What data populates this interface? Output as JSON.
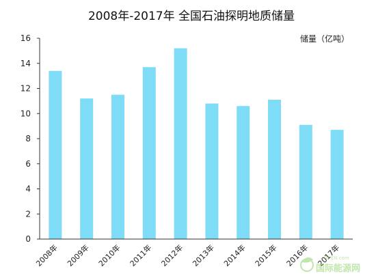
{
  "chart_data": {
    "type": "bar",
    "title": "2008年-2017年  全国石油探明地质储量",
    "unit_label": "储量（亿吨）",
    "categories": [
      "2008年",
      "2009年",
      "2010年",
      "2011年",
      "2012年",
      "2013年",
      "2014年",
      "2015年",
      "2016年",
      "2017年"
    ],
    "values": [
      13.4,
      11.2,
      11.5,
      13.7,
      15.2,
      10.8,
      10.6,
      11.1,
      9.1,
      8.7
    ],
    "ylim": [
      0,
      16
    ],
    "yticks": [
      0,
      2,
      4,
      6,
      8,
      10,
      12,
      14,
      16
    ],
    "bar_color": "#7fdcf6",
    "grid": false,
    "legend": "none"
  },
  "watermark": {
    "text": "国际能源网",
    "sub": "IN-EN.com",
    "icon": "leaf-globe-icon",
    "color": "#8fd36a"
  }
}
